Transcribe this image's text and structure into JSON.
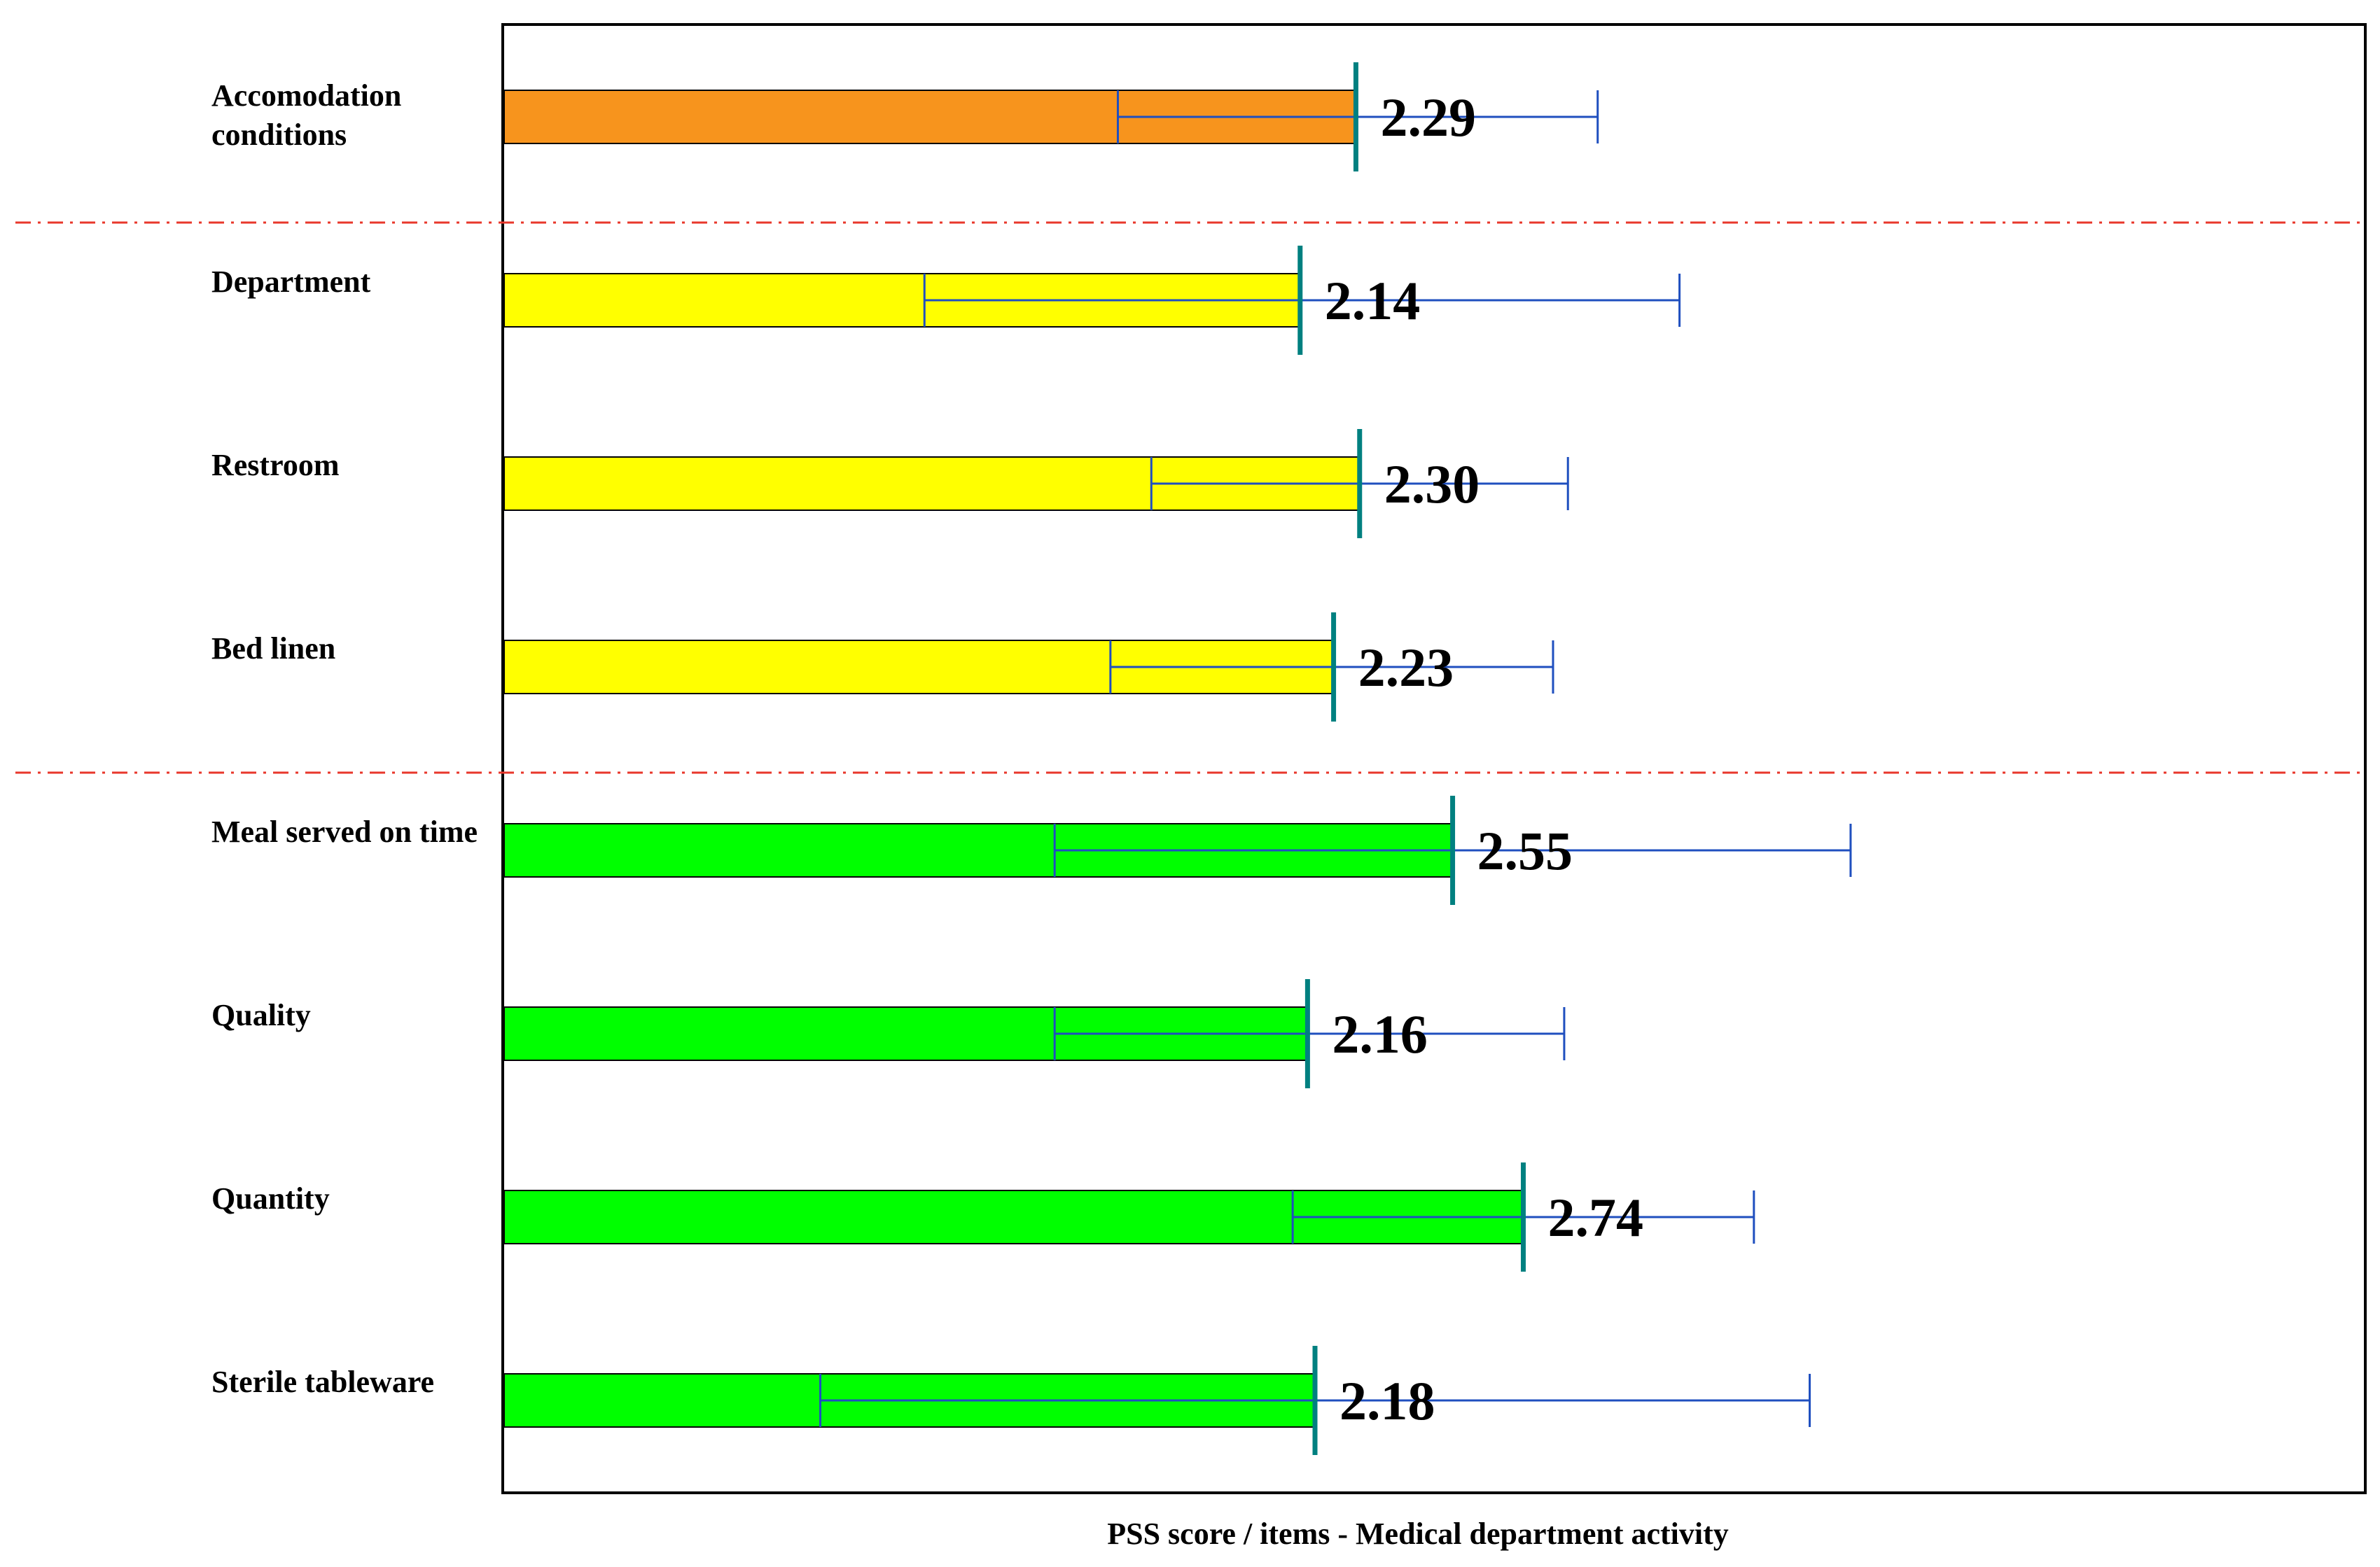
{
  "chart_data": {
    "type": "bar",
    "orientation": "horizontal",
    "xlabel": "PSS score / items - Medical department activity",
    "categories": [
      "Accomodation conditions",
      "Department",
      "Restroom",
      "Bed linen",
      "Meal served on time",
      "Quality",
      "Quantity",
      "Sterile tableware"
    ],
    "values": [
      2.29,
      2.14,
      2.3,
      2.23,
      2.55,
      2.16,
      2.74,
      2.18
    ],
    "value_labels": [
      "2.29",
      "2.14",
      "2.30",
      "2.23",
      "2.55",
      "2.16",
      "2.74",
      "2.18"
    ],
    "error_low": [
      1.65,
      1.13,
      1.74,
      1.63,
      1.48,
      1.48,
      2.12,
      0.85
    ],
    "error_high": [
      2.94,
      3.16,
      2.86,
      2.82,
      3.62,
      2.85,
      3.36,
      3.51
    ],
    "xlim": [
      0,
      5
    ],
    "bar_colors": [
      "#f7941d",
      "#ffff00",
      "#ffff00",
      "#ffff00",
      "#00ff00",
      "#00ff00",
      "#00ff00",
      "#00ff00"
    ],
    "mean_marker_color": "#008080",
    "error_bar_color": "#1f4fbf",
    "separator_color": "#e8372b",
    "separators_after": [
      0,
      3
    ],
    "grid": false,
    "legend": "none"
  }
}
